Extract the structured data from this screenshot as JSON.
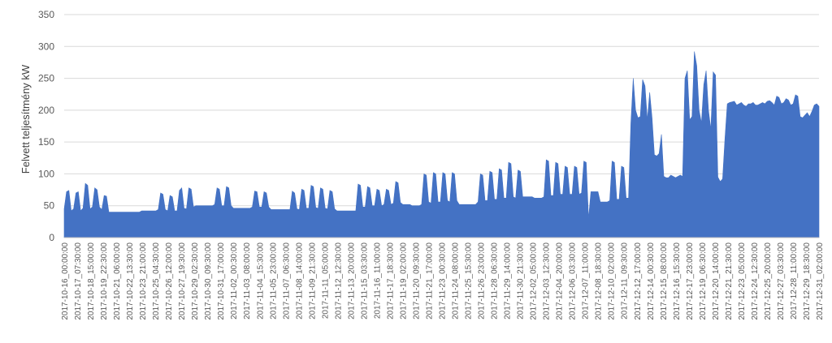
{
  "chart_data": {
    "type": "area",
    "title": "",
    "xlabel": "",
    "ylabel": "Felvett teljesítmény kW",
    "ylim": [
      0,
      350
    ],
    "yticks": [
      0,
      50,
      100,
      150,
      200,
      250,
      300,
      350
    ],
    "grid": true,
    "legend": "none",
    "series_color": "#4472c4",
    "x_labels": [
      "2017-10-16_00:00:00",
      "2017-10-17_07:30:00",
      "2017-10-18_15:00:00",
      "2017-10-19_22:30:00",
      "2017-10-21_06:00:00",
      "2017-10-22_13:30:00",
      "2017-10-23_21:00:00",
      "2017-10-25_04:30:00",
      "2017-10-26_12:00:00",
      "2017-10-27_19:30:00",
      "2017-10-29_02:30:00",
      "2017-10-30_09:30:00",
      "2017-10-31_17:00:00",
      "2017-11-02_00:30:00",
      "2017-11-03_08:00:00",
      "2017-11-04_15:30:00",
      "2017-11-05_23:00:00",
      "2017-11-07_06:30:00",
      "2017-11-08_14:00:00",
      "2017-11-09_21:30:00",
      "2017-11-11_05:00:00",
      "2017-11-12_12:30:00",
      "2017-11-13_20:00:00",
      "2017-11-15_03:30:00",
      "2017-11-16_11:00:00",
      "2017-11-17_18:30:00",
      "2017-11-19_02:00:00",
      "2017-11-20_09:30:00",
      "2017-11-21_17:00:00",
      "2017-11-23_00:30:00",
      "2017-11-24_08:00:00",
      "2017-11-25_15:30:00",
      "2017-11-26_23:00:00",
      "2017-11-28_06:30:00",
      "2017-11-29_14:00:00",
      "2017-11-30_21:30:00",
      "2017-12-02_05:00:00",
      "2017-12-03_12:30:00",
      "2017-12-04_20:00:00",
      "2017-12-06_03:30:00",
      "2017-12-07_11:00:00",
      "2017-12-08_18:30:00",
      "2017-12-10_02:00:00",
      "2017-12-11_09:30:00",
      "2017-12-12_17:00:00",
      "2017-12-14_00:30:00",
      "2017-12-15_08:00:00",
      "2017-12-16_15:30:00",
      "2017-12-17_23:00:00",
      "2017-12-19_06:30:00",
      "2017-12-20_14:00:00",
      "2017-12-21_21:30:00",
      "2017-12-23_05:00:00",
      "2017-12-24_12:30:00",
      "2017-12-25_20:00:00",
      "2017-12-27_03:30:00",
      "2017-12-28_11:00:00",
      "2017-12-29_18:30:00",
      "2017-12-31_02:00:00"
    ],
    "series": [
      {
        "x_start": "2017-10-16",
        "resolution": "1 point per 6 hours",
        "values": [
          45,
          72,
          74,
          42,
          45,
          70,
          72,
          42,
          46,
          85,
          82,
          45,
          48,
          78,
          75,
          48,
          44,
          66,
          65,
          40,
          40,
          40,
          40,
          40,
          40,
          40,
          40,
          40,
          40,
          40,
          40,
          40,
          40,
          42,
          42,
          42,
          42,
          42,
          42,
          42,
          44,
          70,
          68,
          44,
          42,
          66,
          64,
          42,
          42,
          74,
          78,
          46,
          45,
          78,
          76,
          48,
          50,
          50,
          50,
          50,
          50,
          50,
          50,
          50,
          52,
          78,
          76,
          50,
          50,
          80,
          78,
          50,
          46,
          46,
          46,
          46,
          46,
          46,
          46,
          46,
          48,
          73,
          72,
          48,
          48,
          72,
          70,
          48,
          44,
          44,
          44,
          44,
          44,
          44,
          44,
          44,
          44,
          73,
          70,
          45,
          44,
          76,
          74,
          46,
          46,
          82,
          80,
          47,
          46,
          78,
          76,
          46,
          45,
          74,
          72,
          45,
          42,
          42,
          42,
          42,
          42,
          42,
          42,
          42,
          42,
          84,
          82,
          48,
          48,
          80,
          78,
          50,
          50,
          76,
          74,
          50,
          52,
          76,
          74,
          52,
          54,
          88,
          86,
          55,
          52,
          52,
          52,
          52,
          50,
          50,
          50,
          50,
          52,
          100,
          98,
          56,
          54,
          102,
          100,
          56,
          56,
          102,
          100,
          58,
          56,
          102,
          100,
          58,
          52,
          52,
          52,
          52,
          52,
          52,
          52,
          52,
          56,
          100,
          98,
          58,
          58,
          104,
          102,
          60,
          60,
          108,
          106,
          62,
          62,
          118,
          116,
          64,
          62,
          106,
          104,
          64,
          64,
          64,
          64,
          64,
          62,
          62,
          62,
          62,
          64,
          122,
          120,
          66,
          66,
          118,
          116,
          68,
          68,
          112,
          110,
          68,
          68,
          112,
          110,
          68,
          70,
          120,
          118,
          30,
          72,
          72,
          72,
          72,
          56,
          56,
          56,
          56,
          58,
          120,
          118,
          60,
          60,
          112,
          110,
          62,
          62,
          180,
          250,
          200,
          188,
          190,
          248,
          238,
          185,
          228,
          188,
          130,
          128,
          132,
          162,
          96,
          94,
          94,
          98,
          96,
          94,
          96,
          98,
          96,
          250,
          262,
          185,
          190,
          292,
          270,
          200,
          180,
          240,
          262,
          200,
          170,
          260,
          255,
          95,
          88,
          92,
          155,
          210,
          212,
          213,
          214,
          208,
          210,
          212,
          208,
          206,
          210,
          210,
          212,
          208,
          208,
          210,
          212,
          210,
          214,
          215,
          212,
          208,
          222,
          220,
          210,
          212,
          218,
          216,
          208,
          210,
          224,
          222,
          190,
          188,
          192,
          196,
          190,
          198,
          208,
          210,
          206
        ]
      }
    ]
  }
}
